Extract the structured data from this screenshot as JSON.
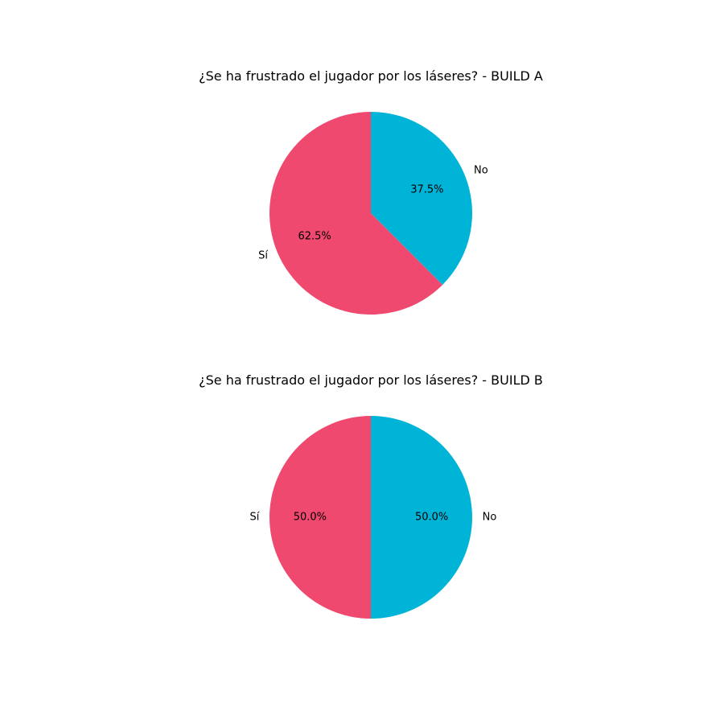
{
  "colors": {
    "si": "#f0496f",
    "no": "#00b4d8"
  },
  "chart_data": [
    {
      "type": "pie",
      "title": "¿Se ha frustrado el jugador por los láseres? - BUILD A",
      "start_angle_deg": 90,
      "direction": "clockwise",
      "slices": [
        {
          "label": "No",
          "value": 37.5,
          "pct_label": "37.5%",
          "color": "#00b4d8"
        },
        {
          "label": "Sí",
          "value": 62.5,
          "pct_label": "62.5%",
          "color": "#f0496f"
        }
      ]
    },
    {
      "type": "pie",
      "title": "¿Se ha frustrado el jugador por los láseres? - BUILD B",
      "start_angle_deg": 90,
      "direction": "clockwise",
      "slices": [
        {
          "label": "No",
          "value": 50.0,
          "pct_label": "50.0%",
          "color": "#00b4d8"
        },
        {
          "label": "Sí",
          "value": 50.0,
          "pct_label": "50.0%",
          "color": "#f0496f"
        }
      ]
    }
  ]
}
